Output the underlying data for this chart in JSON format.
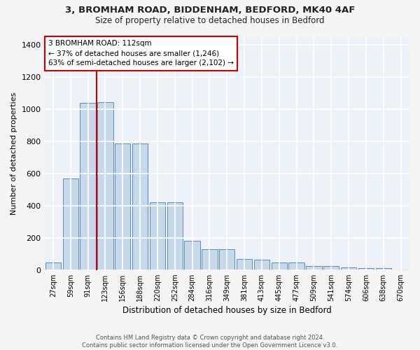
{
  "title_line1": "3, BROMHAM ROAD, BIDDENHAM, BEDFORD, MK40 4AF",
  "title_line2": "Size of property relative to detached houses in Bedford",
  "xlabel": "Distribution of detached houses by size in Bedford",
  "ylabel": "Number of detached properties",
  "bar_color": "#c8d8eb",
  "bar_edge_color": "#5b8db8",
  "background_color": "#edf2f8",
  "grid_color": "#ffffff",
  "categories": [
    "27sqm",
    "59sqm",
    "91sqm",
    "123sqm",
    "156sqm",
    "188sqm",
    "220sqm",
    "252sqm",
    "284sqm",
    "316sqm",
    "349sqm",
    "381sqm",
    "413sqm",
    "445sqm",
    "477sqm",
    "509sqm",
    "541sqm",
    "574sqm",
    "606sqm",
    "638sqm",
    "670sqm"
  ],
  "values": [
    45,
    570,
    1040,
    1045,
    785,
    785,
    420,
    420,
    180,
    130,
    130,
    68,
    65,
    48,
    48,
    25,
    25,
    18,
    10,
    10,
    5
  ],
  "ylim": [
    0,
    1450
  ],
  "yticks": [
    0,
    200,
    400,
    600,
    800,
    1000,
    1200,
    1400
  ],
  "property_bin_index": 2,
  "vline_x_offset": 0.5,
  "annotation_text": "3 BROMHAM ROAD: 112sqm\n← 37% of detached houses are smaller (1,246)\n63% of semi-detached houses are larger (2,102) →",
  "vline_color": "#cc0000",
  "annotation_box_edge_color": "#cc0000",
  "fig_bg": "#f5f5f5",
  "footnote": "Contains HM Land Registry data © Crown copyright and database right 2024.\nContains public sector information licensed under the Open Government Licence v3.0."
}
